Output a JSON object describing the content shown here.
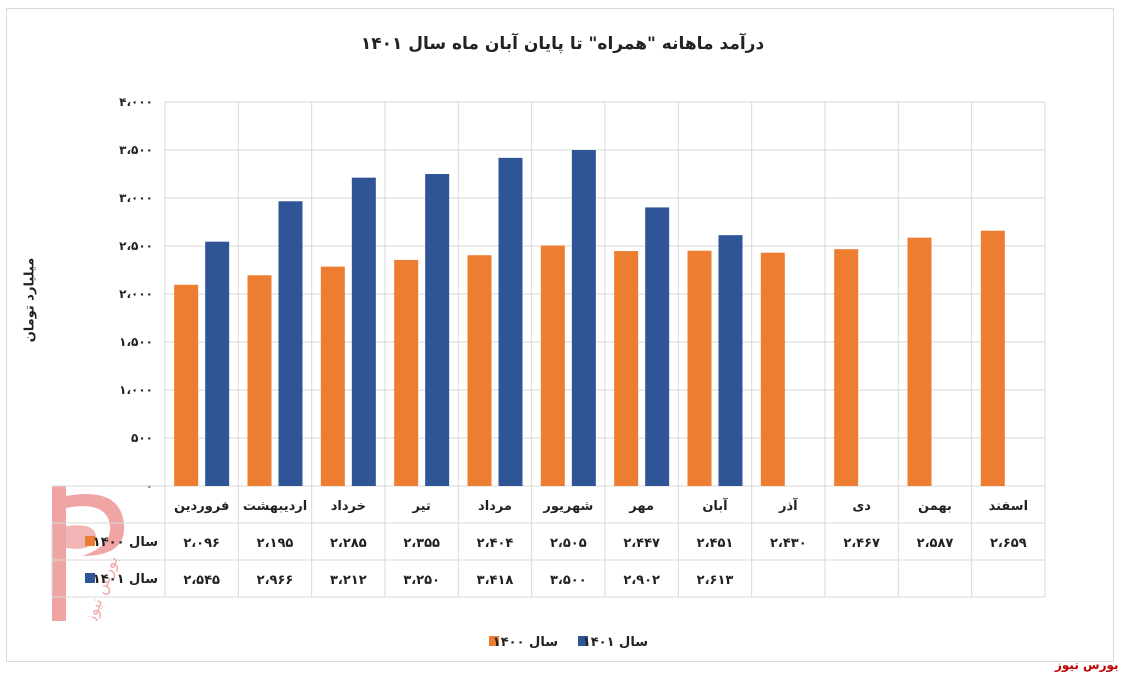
{
  "chart_data": {
    "type": "bar",
    "title": "درآمد ماهانه \"همراه\" تا پایان آبان ماه سال ۱۴۰۱",
    "ylabel": "میلیارد تومان",
    "xlabel": "",
    "ylim": [
      0,
      4000
    ],
    "ytick_values": [
      0,
      500,
      1000,
      1500,
      2000,
      2500,
      3000,
      3500,
      4000
    ],
    "ytick_labels": [
      "۰",
      "۵۰۰",
      "۱،۰۰۰",
      "۱،۵۰۰",
      "۲،۰۰۰",
      "۲،۵۰۰",
      "۳،۰۰۰",
      "۳،۵۰۰",
      "۴،۰۰۰"
    ],
    "categories": [
      "فروردین",
      "اردیبهشت",
      "خرداد",
      "تیر",
      "مرداد",
      "شهریور",
      "مهر",
      "آبان",
      "آذر",
      "دی",
      "بهمن",
      "اسفند"
    ],
    "series": [
      {
        "name": "سال ۱۴۰۰",
        "color": "#ed7d31",
        "values": [
          2096,
          2195,
          2285,
          2355,
          2404,
          2505,
          2447,
          2451,
          2430,
          2467,
          2587,
          2659
        ],
        "labels": [
          "۲،۰۹۶",
          "۲،۱۹۵",
          "۲،۲۸۵",
          "۲،۳۵۵",
          "۲،۴۰۴",
          "۲،۵۰۵",
          "۲،۴۴۷",
          "۲،۴۵۱",
          "۲،۴۳۰",
          "۲،۴۶۷",
          "۲،۵۸۷",
          "۲،۶۵۹"
        ]
      },
      {
        "name": "سال ۱۴۰۱",
        "color": "#2f5597",
        "values": [
          2545,
          2966,
          3212,
          3250,
          3418,
          3500,
          2902,
          2613,
          null,
          null,
          null,
          null
        ],
        "labels": [
          "۲،۵۴۵",
          "۲،۹۶۶",
          "۳،۲۱۲",
          "۳،۲۵۰",
          "۳،۴۱۸",
          "۳،۵۰۰",
          "۲،۹۰۲",
          "۲،۶۱۳",
          "",
          "",
          "",
          ""
        ]
      }
    ],
    "grid": true,
    "legend_position": "bottom-center",
    "data_table": true
  },
  "brand": {
    "text": "بورس نیوز",
    "color": "#c00000",
    "logo_text": "بورس نیوز"
  }
}
